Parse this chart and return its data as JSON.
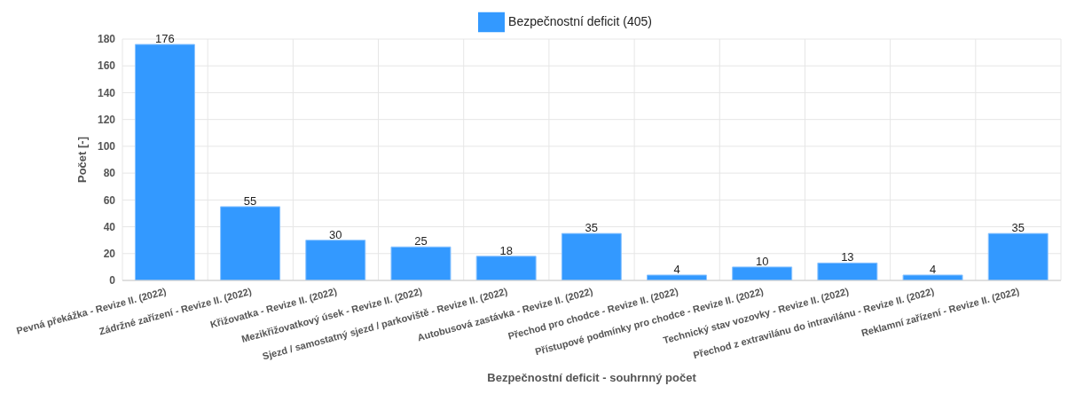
{
  "chart_data": {
    "type": "bar",
    "xlabel": "Bezpečnostní deficit - souhrnný počet",
    "ylabel": "Počet [-]",
    "categories": [
      "Pevná překážka - Revize II. (2022)",
      "Zádržné zařízení - Revize II. (2022)",
      "Křižovatka - Revize II. (2022)",
      "Mezikřižovatkový úsek - Revize II. (2022)",
      "Sjezd / samostatný sjezd / parkoviště - Revize II. (2022)",
      "Autobusová zastávka - Revize II. (2022)",
      "Přechod pro chodce - Revize II. (2022)",
      "Přístupové podmínky pro chodce - Revize II. (2022)",
      "Technický stav vozovky - Revize II. (2022)",
      "Přechod z extravilánu do intravilánu - Revize II. (2022)",
      "Reklamní zařízení - Revize II. (2022)"
    ],
    "series": [
      {
        "name": "Bezpečnostní deficit (405)",
        "color": "#3399ff",
        "values": [
          176,
          55,
          30,
          25,
          18,
          35,
          4,
          10,
          13,
          4,
          35
        ]
      }
    ],
    "ylim": [
      0,
      180
    ],
    "yticks": [
      0,
      20,
      40,
      60,
      80,
      100,
      120,
      140,
      160,
      180
    ],
    "grid": true,
    "legend": "top",
    "data_labels": true
  }
}
